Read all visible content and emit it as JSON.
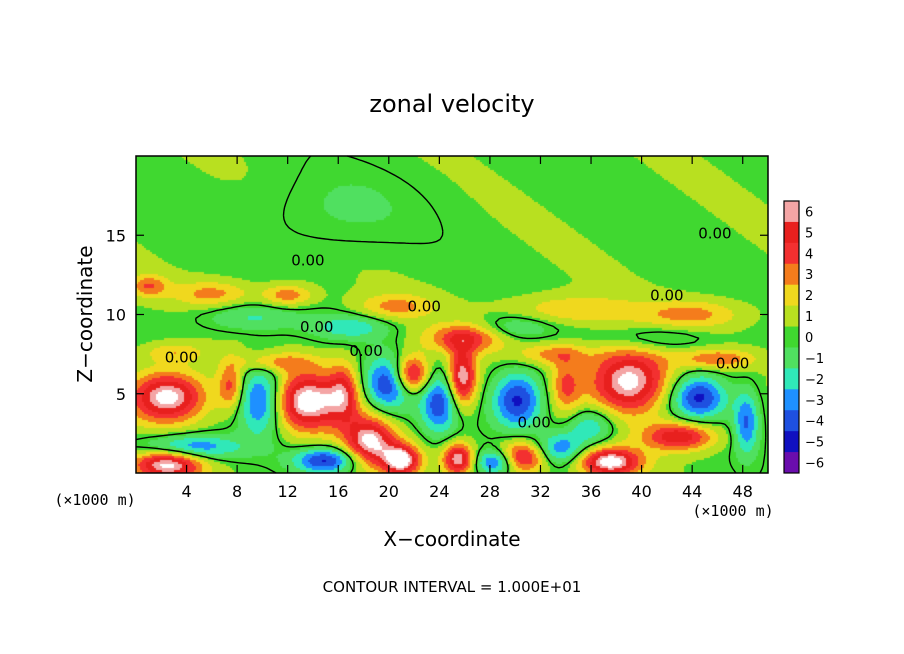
{
  "chart_data": {
    "type": "heatmap",
    "title": "zonal velocity",
    "xlabel": "X−coordinate",
    "ylabel": "Z−coordinate",
    "x_units_note_left": "(×1000 m)",
    "x_units_note_right": "(×1000 m)",
    "footer": "CONTOUR INTERVAL = 1.000E+01",
    "xlim": [
      0,
      50
    ],
    "ylim": [
      0,
      20
    ],
    "x_ticks": [
      4,
      8,
      12,
      16,
      20,
      24,
      28,
      32,
      36,
      40,
      44,
      48
    ],
    "x_tick_labels": [
      "4",
      "8",
      "12",
      "16",
      "20",
      "24",
      "28",
      "32",
      "36",
      "40",
      "44",
      "48"
    ],
    "y_ticks": [
      5,
      10,
      15
    ],
    "y_tick_labels": [
      "5",
      "10",
      "15"
    ],
    "colorbar": {
      "levels": [
        6,
        5,
        4,
        3,
        2,
        1,
        0,
        -1,
        -2,
        -3,
        -4,
        -5,
        -6
      ],
      "labels": [
        "6",
        "5",
        "4",
        "3",
        "2",
        "1",
        "0",
        "−1",
        "−2",
        "−3",
        "−4",
        "−5",
        "−6"
      ],
      "colors": [
        "#f4a5a5",
        "#e8201e",
        "#f33030",
        "#f47c1c",
        "#f0d81e",
        "#b8e020",
        "#40d830",
        "#50e060",
        "#30e8b8",
        "#1e90ff",
        "#1e50e0",
        "#1010c0",
        "#6a0dad"
      ]
    },
    "contour_labels": [
      {
        "text": "0.00",
        "x": 13.6,
        "z": 13.4
      },
      {
        "text": "0.00",
        "x": 22.8,
        "z": 10.5
      },
      {
        "text": "0.00",
        "x": 14.3,
        "z": 9.2
      },
      {
        "text": "0.00",
        "x": 18.2,
        "z": 7.7
      },
      {
        "text": "0.00",
        "x": 3.6,
        "z": 7.3
      },
      {
        "text": "0.00",
        "x": 42.0,
        "z": 11.2
      },
      {
        "text": "0.00",
        "x": 45.8,
        "z": 15.1
      },
      {
        "text": "0.00",
        "x": 47.2,
        "z": 6.9
      },
      {
        "text": "0.00",
        "x": 31.5,
        "z": 3.2
      }
    ],
    "blobs": [
      {
        "x": 2.5,
        "z": 4.8,
        "v": 6.5,
        "rx": 3.0,
        "rz": 1.6
      },
      {
        "x": 2.5,
        "z": 0.6,
        "v": 6.5,
        "rx": 2.8,
        "rz": 1.0
      },
      {
        "x": 13.5,
        "z": 4.5,
        "v": 6.5,
        "rx": 3.2,
        "rz": 1.9
      },
      {
        "x": 18.5,
        "z": 2.0,
        "v": 6.0,
        "rx": 2.0,
        "rz": 1.6
      },
      {
        "x": 21.8,
        "z": 6.2,
        "v": 6.2,
        "rx": 1.4,
        "rz": 1.2
      },
      {
        "x": 25.8,
        "z": 6.0,
        "v": 6.2,
        "rx": 1.1,
        "rz": 1.8
      },
      {
        "x": 30.5,
        "z": 1.0,
        "v": 5.5,
        "rx": 2.0,
        "rz": 1.0
      },
      {
        "x": 39.0,
        "z": 5.8,
        "v": 6.5,
        "rx": 3.2,
        "rz": 2.1
      },
      {
        "x": 37.5,
        "z": 0.7,
        "v": 6.5,
        "rx": 2.5,
        "rz": 0.9
      },
      {
        "x": 43.0,
        "z": 2.3,
        "v": 5.2,
        "rx": 2.8,
        "rz": 0.9
      },
      {
        "x": 21.0,
        "z": 0.8,
        "v": 6.4,
        "rx": 1.5,
        "rz": 1.0
      },
      {
        "x": 25.5,
        "z": 0.9,
        "v": 6.0,
        "rx": 1.2,
        "rz": 1.0
      },
      {
        "x": 10.0,
        "z": 4.6,
        "v": -5.5,
        "rx": 1.8,
        "rz": 2.1
      },
      {
        "x": 20.0,
        "z": 5.6,
        "v": -5.0,
        "rx": 2.0,
        "rz": 1.7
      },
      {
        "x": 24.0,
        "z": 4.4,
        "v": -4.5,
        "rx": 1.5,
        "rz": 1.9
      },
      {
        "x": 30.2,
        "z": 4.6,
        "v": -5.2,
        "rx": 2.0,
        "rz": 1.8
      },
      {
        "x": 44.5,
        "z": 4.8,
        "v": -5.2,
        "rx": 2.2,
        "rz": 1.4
      },
      {
        "x": 4.0,
        "z": 1.6,
        "v": -4.5,
        "rx": 4.0,
        "rz": 0.8
      },
      {
        "x": 15.0,
        "z": 0.8,
        "v": -5.0,
        "rx": 2.5,
        "rz": 0.8
      },
      {
        "x": 28.5,
        "z": 0.7,
        "v": -4.8,
        "rx": 1.6,
        "rz": 0.8
      },
      {
        "x": 33.5,
        "z": 1.5,
        "v": -3.8,
        "rx": 2.0,
        "rz": 1.0
      },
      {
        "x": 48.3,
        "z": 3.2,
        "v": -4.0,
        "rx": 1.0,
        "rz": 2.0
      },
      {
        "x": 1.0,
        "z": 11.8,
        "v": 3.0,
        "rx": 1.5,
        "rz": 0.7
      },
      {
        "x": 6.0,
        "z": 11.3,
        "v": 2.5,
        "rx": 3.0,
        "rz": 0.8
      },
      {
        "x": 12.0,
        "z": 11.2,
        "v": 3.0,
        "rx": 2.0,
        "rz": 0.7
      },
      {
        "x": 20.5,
        "z": 10.5,
        "v": 2.5,
        "rx": 3.0,
        "rz": 0.8
      },
      {
        "x": 26.0,
        "z": 8.5,
        "v": 4.0,
        "rx": 3.0,
        "rz": 0.9
      },
      {
        "x": 34.5,
        "z": 10.3,
        "v": 2.2,
        "rx": 5.0,
        "rz": 0.9
      },
      {
        "x": 44.0,
        "z": 10.0,
        "v": 2.5,
        "rx": 4.0,
        "rz": 0.9
      },
      {
        "x": 33.0,
        "z": 7.5,
        "v": 2.5,
        "rx": 3.0,
        "rz": 0.7
      },
      {
        "x": 9.0,
        "z": 9.8,
        "v": -2.0,
        "rx": 4.0,
        "rz": 0.9
      },
      {
        "x": 17.0,
        "z": 9.2,
        "v": -2.5,
        "rx": 3.0,
        "rz": 0.8
      },
      {
        "x": 30.0,
        "z": 9.2,
        "v": -1.8,
        "rx": 3.0,
        "rz": 0.8
      },
      {
        "x": 41.0,
        "z": 8.5,
        "v": -1.8,
        "rx": 4.0,
        "rz": 0.8
      },
      {
        "x": 16.0,
        "z": 16.5,
        "v": -1.0,
        "rx": 6.0,
        "rz": 2.5
      },
      {
        "x": 3.0,
        "z": 7.6,
        "v": 2.0,
        "rx": 2.5,
        "rz": 0.6
      },
      {
        "x": 11.0,
        "z": 7.0,
        "v": 2.5,
        "rx": 3.0,
        "rz": 0.6
      },
      {
        "x": 46.0,
        "z": 7.2,
        "v": 3.0,
        "rx": 3.0,
        "rz": 0.6
      },
      {
        "x": 36.0,
        "z": 3.0,
        "v": -3.0,
        "rx": 2.0,
        "rz": 1.2
      },
      {
        "x": 7.5,
        "z": 5.5,
        "v": 3.5,
        "rx": 1.0,
        "rz": 1.5
      },
      {
        "x": 16.5,
        "z": 5.2,
        "v": 3.2,
        "rx": 1.2,
        "rz": 1.8
      },
      {
        "x": 34.0,
        "z": 5.5,
        "v": 3.0,
        "rx": 1.2,
        "rz": 1.8
      }
    ]
  }
}
